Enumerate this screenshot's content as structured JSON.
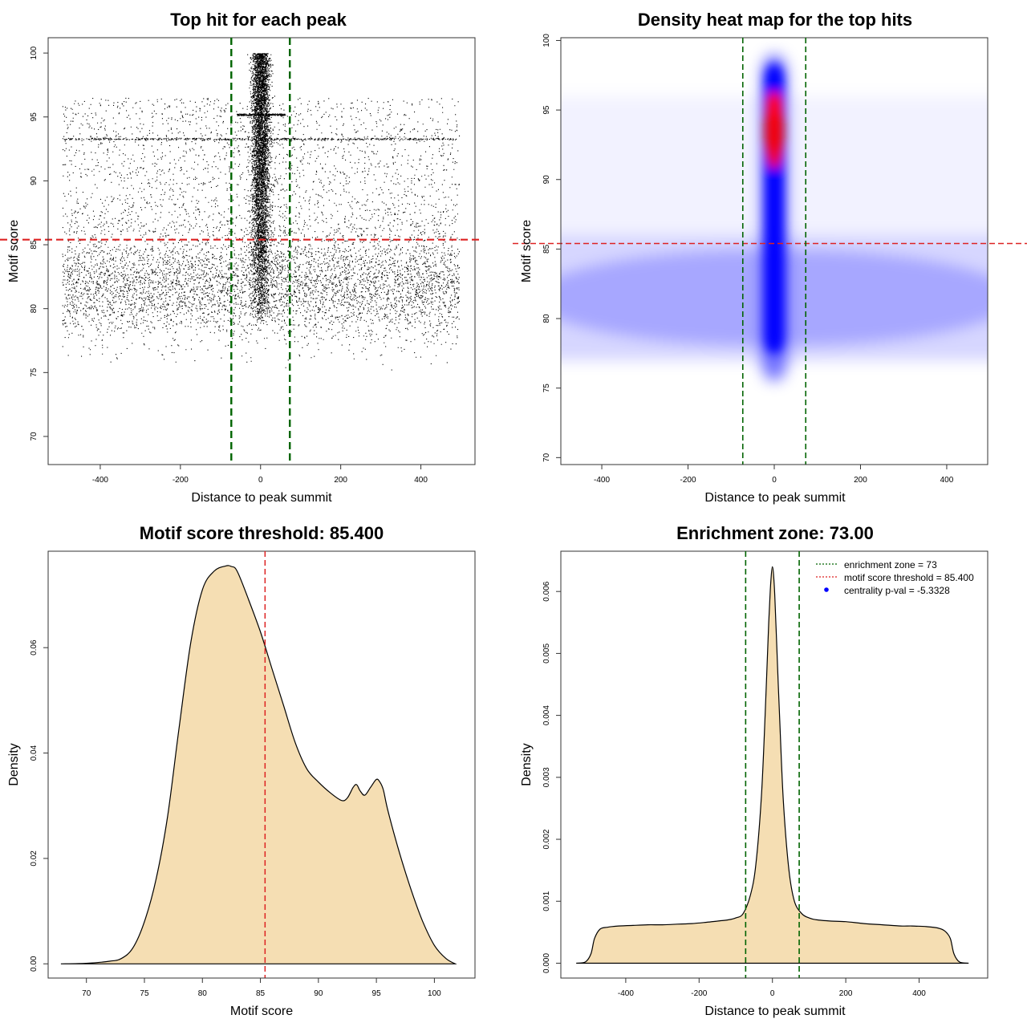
{
  "chart_data": [
    {
      "id": "scatter",
      "type": "scatter",
      "title": "Top hit for each peak",
      "xlabel": "Distance to peak summit",
      "ylabel": "Motif score",
      "xlim": [
        -530,
        535
      ],
      "ylim": [
        67.8,
        101.2
      ],
      "xticks": [
        -400,
        -200,
        0,
        200,
        400
      ],
      "yticks": [
        70,
        75,
        80,
        85,
        90,
        95,
        100
      ],
      "threshold": 85.4,
      "zone": [
        -73,
        73
      ],
      "series_description": "Top motif hit per peak: background uniform over distance (-495 to 495) with scores ~73-96; dense central band near distance 0 with scores 79-100; horizontal streaks at scores 93.3 and 95.2",
      "line_colors": {
        "threshold": "#dd2222",
        "zone": "#006400"
      }
    },
    {
      "id": "heatmap",
      "type": "heatmap",
      "title": "Density heat map for the top hits",
      "xlabel": "Distance to peak summit",
      "ylabel": "Motif score",
      "xlim": [
        -495,
        495
      ],
      "ylim": [
        69.5,
        100.2
      ],
      "xticks": [
        -400,
        -200,
        0,
        200,
        400
      ],
      "yticks": [
        70,
        75,
        80,
        85,
        90,
        95,
        100
      ],
      "threshold": 85.4,
      "zone": [
        -73,
        73
      ],
      "colors": [
        "#ffffff",
        "#0000ff",
        "#ff0000"
      ],
      "line_colors": {
        "threshold": "#dd2222",
        "zone": "#006400"
      }
    },
    {
      "id": "score_density",
      "type": "area",
      "title": "Motif score threshold: 85.400",
      "xlabel": "Motif score",
      "ylabel": "Density",
      "xlim": [
        66.7,
        103.5
      ],
      "ylim": [
        -0.0027,
        0.0783
      ],
      "xticks": [
        70,
        75,
        80,
        85,
        90,
        95,
        100
      ],
      "yticks": [
        0.0,
        0.02,
        0.04,
        0.06
      ],
      "ytick_labels": [
        "0.00",
        "0.02",
        "0.04",
        "0.06"
      ],
      "threshold": 85.4,
      "fill": "#f5deb3",
      "x": [
        67.8,
        70,
        72,
        73,
        74,
        75,
        76,
        77,
        78,
        79,
        80,
        81,
        82,
        82.5,
        83,
        84,
        85,
        86,
        87,
        88,
        89,
        90,
        91,
        92,
        92.5,
        93,
        93.3,
        93.6,
        94,
        94.5,
        95,
        95.3,
        95.6,
        96,
        97,
        98,
        99,
        100,
        101,
        101.8
      ],
      "y": [
        0,
        0.0001,
        0.0005,
        0.001,
        0.003,
        0.008,
        0.016,
        0.028,
        0.045,
        0.061,
        0.071,
        0.0745,
        0.0755,
        0.0754,
        0.0745,
        0.069,
        0.063,
        0.056,
        0.049,
        0.042,
        0.037,
        0.0345,
        0.0325,
        0.031,
        0.0315,
        0.0335,
        0.034,
        0.0328,
        0.032,
        0.0335,
        0.035,
        0.0345,
        0.033,
        0.029,
        0.021,
        0.014,
        0.008,
        0.0035,
        0.001,
        0.0
      ]
    },
    {
      "id": "distance_density",
      "type": "area",
      "title": "Enrichment zone: 73.00",
      "xlabel": "Distance to peak summit",
      "ylabel": "Density",
      "xlim": [
        -577,
        587
      ],
      "ylim": [
        -0.00024,
        0.00665
      ],
      "xticks": [
        -400,
        -200,
        0,
        200,
        400
      ],
      "yticks": [
        0.0,
        0.001,
        0.002,
        0.003,
        0.004,
        0.005,
        0.006
      ],
      "ytick_labels": [
        "0.000",
        "0.001",
        "0.002",
        "0.003",
        "0.004",
        "0.005",
        "0.006"
      ],
      "threshold": 85.4,
      "zone": [
        -73,
        73
      ],
      "fill": "#f5deb3",
      "x": [
        -535,
        -510,
        -495,
        -485,
        -470,
        -450,
        -420,
        -380,
        -340,
        -300,
        -260,
        -220,
        -180,
        -150,
        -120,
        -100,
        -80,
        -60,
        -45,
        -30,
        -20,
        -10,
        -5,
        0,
        5,
        10,
        20,
        30,
        45,
        60,
        80,
        100,
        120,
        160,
        200,
        250,
        300,
        350,
        380,
        420,
        450,
        470,
        485,
        495,
        510,
        535
      ],
      "y": [
        0,
        2e-05,
        0.00015,
        0.0004,
        0.00055,
        0.00058,
        0.0006,
        0.00061,
        0.00062,
        0.00062,
        0.00063,
        0.00064,
        0.00066,
        0.00068,
        0.0007,
        0.00073,
        0.0008,
        0.0011,
        0.0016,
        0.0027,
        0.004,
        0.0055,
        0.0061,
        0.0064,
        0.0061,
        0.0054,
        0.0039,
        0.0026,
        0.0015,
        0.001,
        0.0008,
        0.00073,
        0.0007,
        0.00068,
        0.00067,
        0.00064,
        0.00062,
        0.0006,
        0.0006,
        0.00059,
        0.00057,
        0.00052,
        0.0004,
        0.00015,
        2e-05,
        0
      ],
      "legend": [
        {
          "label": "enrichment zone = 73",
          "color": "#006400",
          "kind": "dotted-line"
        },
        {
          "label": "motif score threshold = 85.400",
          "color": "#dd2222",
          "kind": "dotted-line"
        },
        {
          "label": "centrality p-val = -5.3328",
          "color": "#0000ff",
          "kind": "point"
        }
      ]
    }
  ]
}
